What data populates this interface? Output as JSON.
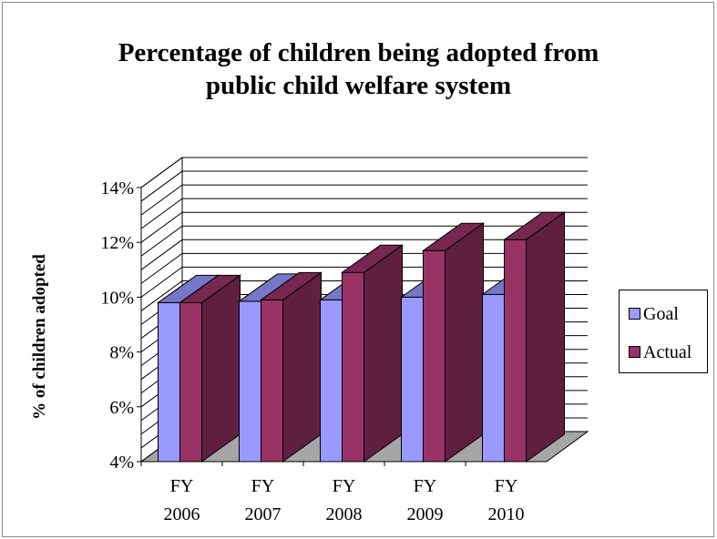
{
  "chart_data": {
    "type": "bar",
    "title_lines": [
      "Percentage of children being adopted from",
      "public child welfare system"
    ],
    "ylabel": "% of children adopted",
    "xlabel": "",
    "categories": [
      [
        "FY",
        "2006"
      ],
      [
        "FY",
        "2007"
      ],
      [
        "FY",
        "2008"
      ],
      [
        "FY",
        "2009"
      ],
      [
        "FY",
        "2010"
      ]
    ],
    "series": [
      {
        "name": "Goal",
        "values": [
          9.8,
          9.85,
          9.9,
          10.0,
          10.1
        ],
        "color": "#9999ff"
      },
      {
        "name": "Actual",
        "values": [
          9.8,
          9.9,
          10.9,
          11.7,
          12.1
        ],
        "color": "#993366"
      }
    ],
    "ylim": [
      4,
      14
    ],
    "yticks": [
      "4%",
      "6%",
      "8%",
      "10%",
      "12%",
      "14%"
    ],
    "grid": true,
    "legend_position": "right",
    "style": "3d-column"
  }
}
